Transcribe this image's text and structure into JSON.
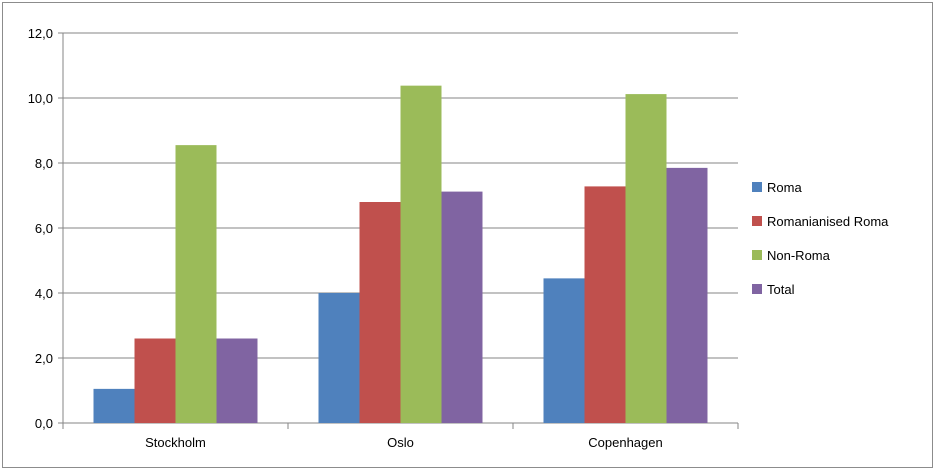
{
  "chart_data": {
    "type": "bar",
    "categories": [
      "Stockholm",
      "Oslo",
      "Copenhagen"
    ],
    "series": [
      {
        "name": "Roma",
        "color": "#4f81bd",
        "values": [
          1.05,
          4.0,
          4.45
        ]
      },
      {
        "name": "Romanianised Roma",
        "color": "#c0504d",
        "values": [
          2.6,
          6.8,
          7.28
        ]
      },
      {
        "name": "Non-Roma",
        "color": "#9bbb59",
        "values": [
          8.55,
          10.38,
          10.12
        ]
      },
      {
        "name": "Total",
        "color": "#8064a2",
        "values": [
          2.6,
          7.12,
          7.85
        ]
      }
    ],
    "yticks": [
      "0,0",
      "2,0",
      "4,0",
      "6,0",
      "8,0",
      "10,0",
      "12,0"
    ],
    "ylim": [
      0,
      12
    ],
    "grid": true,
    "legend_position": "right"
  }
}
